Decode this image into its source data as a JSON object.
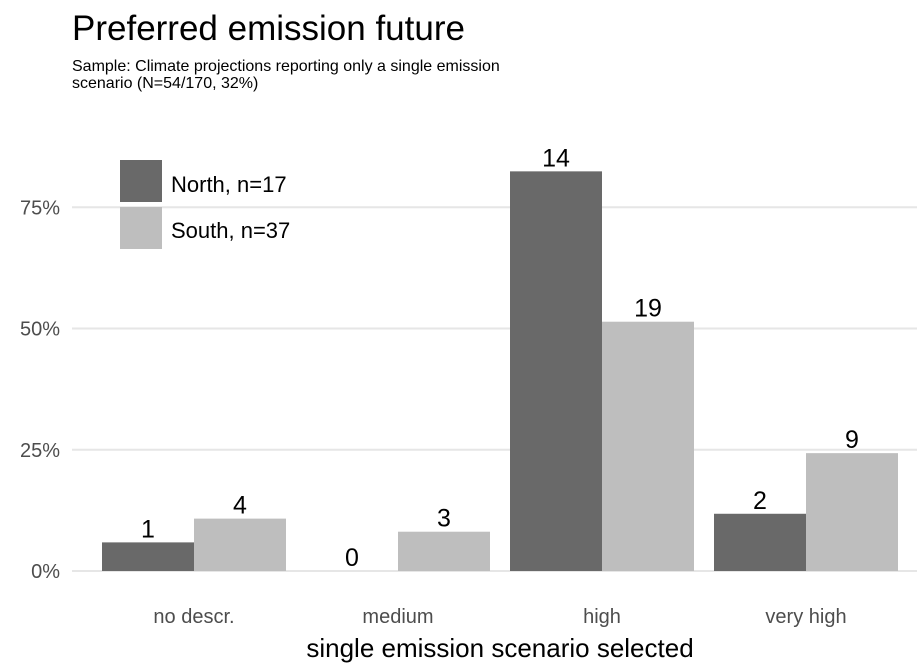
{
  "title": "Preferred emission future",
  "subtitle": "Sample: Climate projections reporting only a single emission scenario (N=54/170, 32%)",
  "colors": {
    "north": "#696969",
    "south": "#bebebe",
    "grid": "#e6e6e6"
  },
  "chart_data": {
    "type": "bar",
    "categories": [
      "no descr.",
      "medium",
      "high",
      "very high"
    ],
    "series": [
      {
        "name": "North, n=17",
        "values": [
          5.9,
          0,
          82.4,
          11.8
        ],
        "labels": [
          "1",
          "0",
          "14",
          "2"
        ]
      },
      {
        "name": "South, n=37",
        "values": [
          10.8,
          8.1,
          51.4,
          24.3
        ],
        "labels": [
          "4",
          "3",
          "19",
          "9"
        ]
      }
    ],
    "xlabel": "single emission scenario selected",
    "ylabel": "",
    "ylim": [
      0,
      90
    ],
    "yticks": [
      0,
      25,
      50,
      75
    ],
    "ytick_labels": [
      "0%",
      "25%",
      "50%",
      "75%"
    ],
    "grid": true,
    "legend_position": "top-left"
  }
}
